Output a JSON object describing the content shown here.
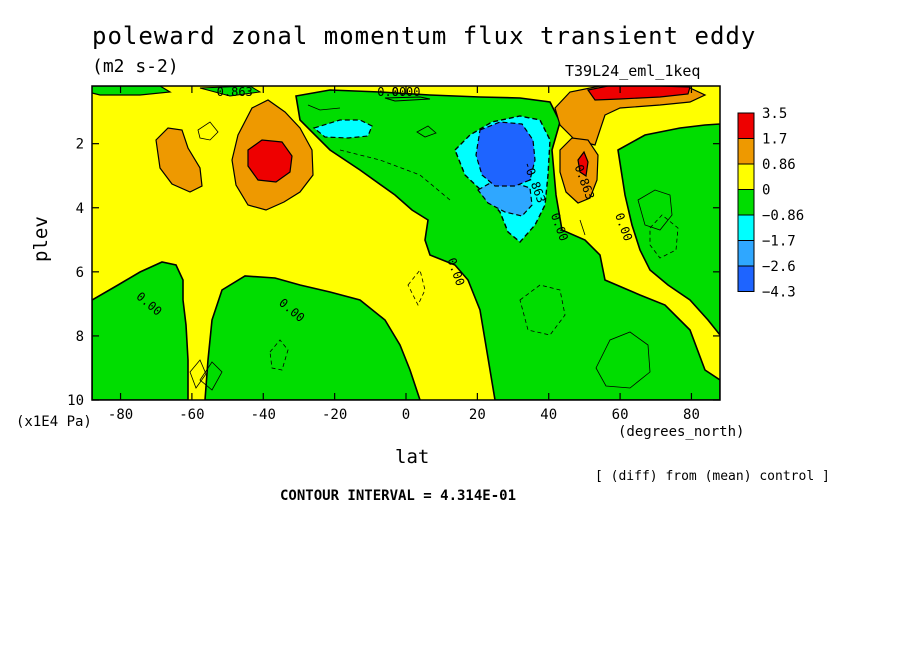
{
  "chart_data": {
    "type": "heatmap",
    "title": "poleward zonal momentum flux transient eddy",
    "units_label": "(m2 s-2)",
    "run_label": "T39L24_eml_1keq",
    "xlabel": "lat",
    "ylabel": "plev",
    "x_unit": "(degrees_north)",
    "y_unit": "(x1E4 Pa)",
    "xlim": [
      -88,
      88
    ],
    "ylim": [
      10,
      0.2
    ],
    "x_ticks": [
      -80,
      -60,
      -40,
      -20,
      0,
      20,
      40,
      60,
      80
    ],
    "y_ticks": [
      2,
      4,
      6,
      8,
      10
    ],
    "colorbar": {
      "labels": [
        "3.5",
        "1.7",
        "0.86",
        "0",
        "−0.86",
        "−1.7",
        "−2.6",
        "−4.3"
      ],
      "colors": [
        "#ee0000",
        "#ee9900",
        "#ffff00",
        "#00dd00",
        "#00ffff",
        "#2fa7ff",
        "#1e64ff"
      ]
    },
    "contour_labels": [
      {
        "text": "0.00",
        "lat": -4,
        "plev": 0.0
      },
      {
        "text": "0.863",
        "lat": -48,
        "plev": 0.3
      },
      {
        "text": "0.00",
        "lat": 0,
        "plev": 0.25
      },
      {
        "text": "0.00",
        "lat": -72,
        "plev": 7.0
      },
      {
        "text": "0.00",
        "lat": -32,
        "plev": 7.2
      },
      {
        "text": "0.00",
        "lat": 14,
        "plev": 6.0
      },
      {
        "text": "-0.863",
        "lat": 36,
        "plev": 3.2
      },
      {
        "text": "0.00",
        "lat": 43,
        "plev": 4.6
      },
      {
        "text": "0.863",
        "lat": 50,
        "plev": 3.2
      },
      {
        "text": "0.00",
        "lat": 61,
        "plev": 4.6
      }
    ]
  },
  "footer": {
    "diff_note": "[ (diff) from (mean) control ]",
    "contour_interval": "CONTOUR INTERVAL = 4.314E-01"
  }
}
